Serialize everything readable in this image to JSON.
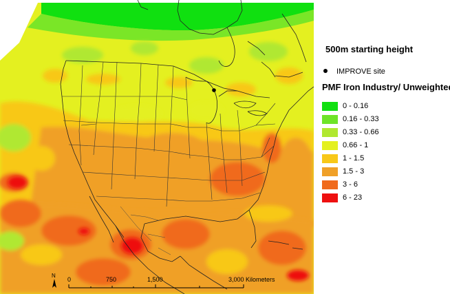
{
  "legend": {
    "starting_height": "500m starting height",
    "site_label": "IMPROVE site",
    "title": "PMF Iron Industry/ Unweighted",
    "classes": [
      {
        "label": "0 - 0.16",
        "color": "#10e010"
      },
      {
        "label": "0.16 - 0.33",
        "color": "#6ee428"
      },
      {
        "label": "0.33 - 0.66",
        "color": "#b0e830"
      },
      {
        "label": "0.66 - 1",
        "color": "#e4f020"
      },
      {
        "label": "1 - 1.5",
        "color": "#f8c818"
      },
      {
        "label": "1.5 - 3",
        "color": "#f0a028"
      },
      {
        "label": "3 - 6",
        "color": "#f06a1c"
      },
      {
        "label": "6 - 23",
        "color": "#ee1010"
      }
    ]
  },
  "scale": {
    "ticks": [
      "0",
      "750",
      "1,500",
      "3,000 Kilometers"
    ]
  },
  "north_label": "N"
}
